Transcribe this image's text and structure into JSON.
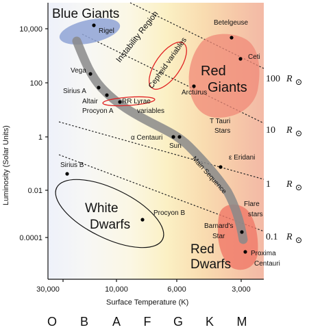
{
  "regions": {
    "blue_giants": "Blue Giants",
    "instability": "Instability Region",
    "red_giants": [
      "Red",
      "Giants"
    ],
    "white_dwarfs": [
      "White",
      "Dwarfs"
    ],
    "red_dwarfs": [
      "Red",
      "Dwarfs"
    ],
    "main_sequence": "Main Sequence",
    "cepheid": "Cepheid variables",
    "rr_lyrae": [
      "RR Lyrae",
      "variables"
    ]
  },
  "stars": {
    "rigel": "Rigel",
    "betelgeuse": "Betelgeuse",
    "ceti": "Ceti",
    "vega": "Vega",
    "sirius_a": "Sirius A",
    "altair": "Altair",
    "procyon_a": "Procyon A",
    "arcturus": "Arcturus",
    "t_tauri": [
      "T Tauri",
      "Stars"
    ],
    "alpha_centauri": "α Centauri",
    "sun": "Sun",
    "eps_eridani": "ε Eridani",
    "sirius_b": "Sirius  B",
    "procyon_b": "Procyon B",
    "flare": [
      "Flare",
      "stars"
    ],
    "barnard": [
      "Barnard's",
      "Star"
    ],
    "proxima": [
      "Proxima",
      "Centauri"
    ]
  },
  "y_ticks": [
    "10,000",
    "100",
    "1",
    "0.01",
    "0.0001"
  ],
  "x_ticks": [
    "30,000",
    "10,000",
    "6,000",
    "3,000"
  ],
  "y_axis_label": "Luminosity (Solar Units)",
  "x_axis_label": "Surface Temperature (K)",
  "radius_lines": [
    {
      "value": "100",
      "unit": "R"
    },
    {
      "value": "10",
      "unit": "R"
    },
    {
      "value": "1",
      "unit": "R"
    },
    {
      "value": "0.1",
      "unit": "R"
    }
  ],
  "spectral_classes": [
    "O",
    "B",
    "A",
    "F",
    "G",
    "K",
    "M"
  ],
  "colors": {
    "blue_giants": "#8fa3d6",
    "red_giants": "#f08a78",
    "red_dwarfs": "#f07868",
    "main_sequence": "#8a8a8a",
    "cepheid_outline": "#e02020"
  }
}
